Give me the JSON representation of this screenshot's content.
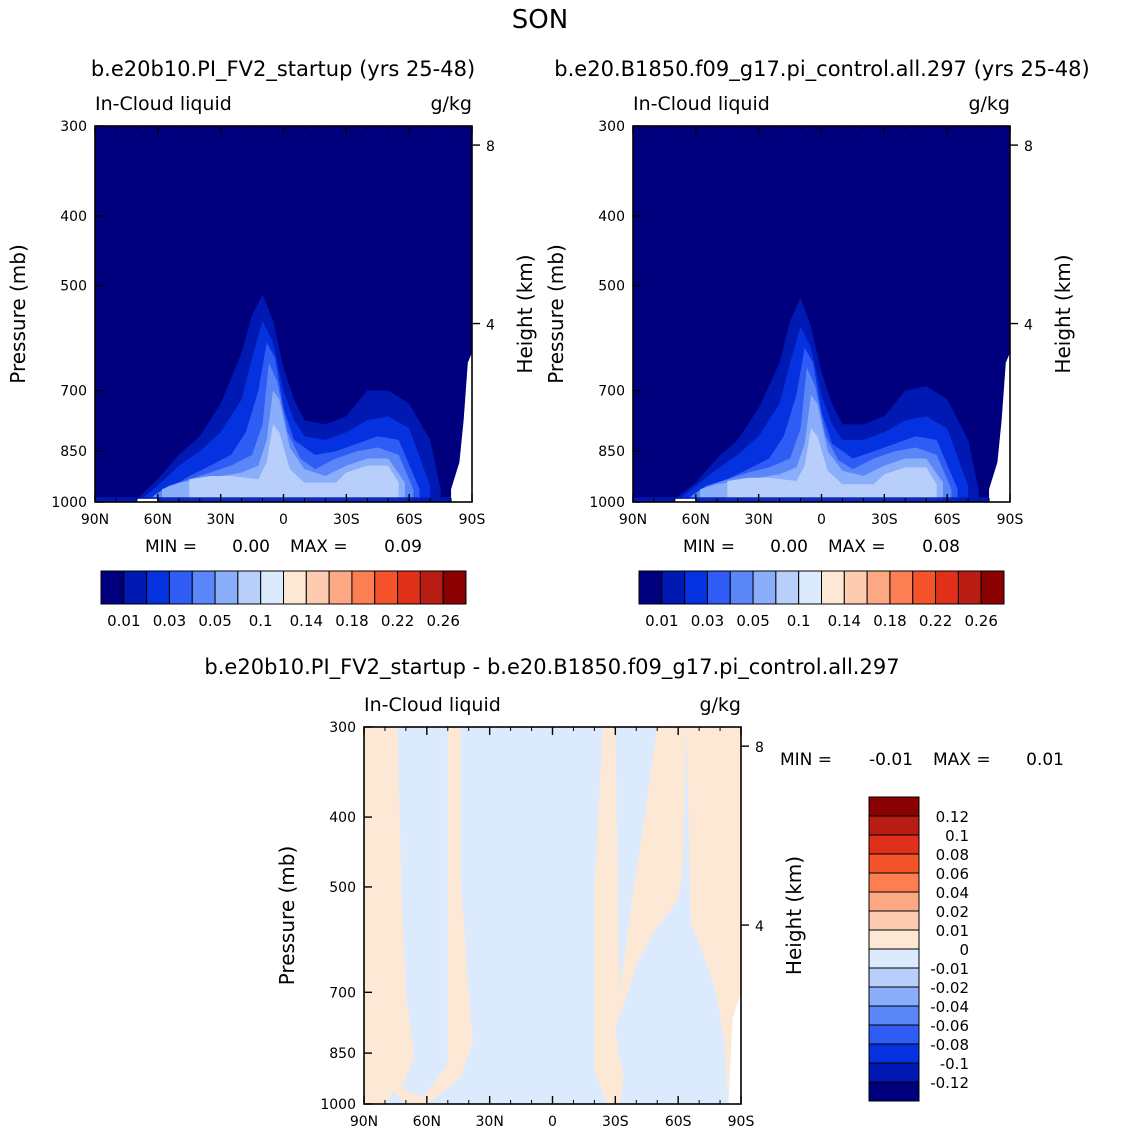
{
  "page": {
    "title": "SON",
    "panel1_header": "b.e20b10.PI_FV2_startup (yrs 25-48)",
    "panel2_header": "b.e20.B1850.f09_g17.pi_control.all.297 (yrs 25-48)",
    "diff_header": "b.e20b10.PI_FV2_startup - b.e20.B1850.f09_g17.pi_control.all.297"
  },
  "chart_data": [
    {
      "type": "heatmap",
      "variable": "In-Cloud liquid",
      "units": "g/kg",
      "ylabel": "Pressure (mb)",
      "y2label": "Height (km)",
      "x_ticks": [
        "90N",
        "60N",
        "30N",
        "0",
        "30S",
        "60S",
        "90S"
      ],
      "x_range": [
        90,
        -90
      ],
      "y_ticks": [
        300,
        400,
        500,
        700,
        850,
        1000
      ],
      "y_range": [
        300,
        1000
      ],
      "y2_ticks": [
        8,
        4
      ],
      "stats": {
        "min_label": "MIN =",
        "min_value": "0.00",
        "max_label": "MAX =",
        "max_value": "0.09"
      },
      "colorbar_labels": [
        "0.01",
        "0.03",
        "0.05",
        "0.1",
        "0.14",
        "0.18",
        "0.22",
        "0.26"
      ],
      "colors": [
        "#00007f",
        "#0019b2",
        "#0532e0",
        "#2f5cf5",
        "#5a86f8",
        "#8aaefa",
        "#b9cffb",
        "#dceafd",
        "#fde8d6",
        "#fdcbb0",
        "#fca883",
        "#fb7f52",
        "#f5542a",
        "#e0301a",
        "#b81c12",
        "#8b0000"
      ],
      "levels": [
        {
          "level": 0.005,
          "color_index": 1,
          "lat": [
            70,
            60,
            50,
            40,
            30,
            20,
            15,
            10,
            5,
            0,
            -5,
            -10,
            -20,
            -30,
            -40,
            -50,
            -60,
            -70,
            -75
          ],
          "top": [
            990,
            930,
            860,
            810,
            730,
            620,
            550,
            515,
            560,
            650,
            720,
            770,
            780,
            760,
            700,
            700,
            730,
            820,
            960
          ]
        },
        {
          "level": 0.01,
          "color_index": 2,
          "lat": [
            68,
            60,
            50,
            40,
            30,
            20,
            15,
            10,
            5,
            0,
            -5,
            -10,
            -20,
            -30,
            -40,
            -50,
            -60,
            -70
          ],
          "top": [
            990,
            950,
            890,
            850,
            800,
            720,
            630,
            560,
            600,
            700,
            770,
            810,
            820,
            800,
            770,
            760,
            790,
            950
          ]
        },
        {
          "level": 0.02,
          "color_index": 3,
          "lat": [
            65,
            55,
            45,
            35,
            25,
            18,
            12,
            8,
            4,
            0,
            -5,
            -15,
            -25,
            -35,
            -45,
            -55,
            -65
          ],
          "top": [
            990,
            960,
            920,
            890,
            860,
            800,
            700,
            600,
            630,
            740,
            820,
            860,
            850,
            830,
            810,
            820,
            960
          ]
        },
        {
          "level": 0.03,
          "color_index": 4,
          "lat": [
            62,
            55,
            45,
            35,
            25,
            15,
            10,
            7,
            3,
            -2,
            -8,
            -15,
            -25,
            -35,
            -45,
            -55,
            -62
          ],
          "top": [
            980,
            950,
            930,
            910,
            890,
            860,
            780,
            640,
            680,
            800,
            870,
            900,
            870,
            850,
            840,
            860,
            960
          ]
        },
        {
          "level": 0.05,
          "color_index": 5,
          "lat": [
            58,
            50,
            40,
            30,
            20,
            12,
            8,
            5,
            2,
            -3,
            -10,
            -20,
            -30,
            -40,
            -50,
            -58
          ],
          "top": [
            960,
            940,
            930,
            920,
            910,
            890,
            820,
            700,
            720,
            840,
            900,
            920,
            890,
            870,
            870,
            940
          ]
        },
        {
          "level": 0.07,
          "color_index": 6,
          "lat": [
            45,
            35,
            25,
            12,
            8,
            5,
            2,
            -3,
            -10,
            -25,
            -30,
            -40,
            -50,
            -55
          ],
          "top": [
            930,
            920,
            920,
            930,
            880,
            780,
            800,
            900,
            940,
            940,
            910,
            890,
            890,
            940
          ]
        }
      ]
    },
    {
      "type": "heatmap",
      "variable": "In-Cloud liquid",
      "units": "g/kg",
      "ylabel": "Pressure (mb)",
      "y2label": "Height (km)",
      "x_ticks": [
        "90N",
        "60N",
        "30N",
        "0",
        "30S",
        "60S",
        "90S"
      ],
      "x_range": [
        90,
        -90
      ],
      "y_ticks": [
        300,
        400,
        500,
        700,
        850,
        1000
      ],
      "y_range": [
        300,
        1000
      ],
      "y2_ticks": [
        8,
        4
      ],
      "stats": {
        "min_label": "MIN =",
        "min_value": "0.00",
        "max_label": "MAX =",
        "max_value": "0.08"
      },
      "colorbar_labels": [
        "0.01",
        "0.03",
        "0.05",
        "0.1",
        "0.14",
        "0.18",
        "0.22",
        "0.26"
      ],
      "levels": [
        {
          "level": 0.005,
          "color_index": 1,
          "lat": [
            70,
            60,
            50,
            40,
            30,
            20,
            15,
            10,
            5,
            0,
            -5,
            -10,
            -20,
            -30,
            -40,
            -50,
            -60,
            -70,
            -75
          ],
          "top": [
            990,
            940,
            870,
            820,
            740,
            640,
            560,
            520,
            570,
            660,
            730,
            780,
            780,
            760,
            700,
            690,
            720,
            820,
            960
          ]
        },
        {
          "level": 0.01,
          "color_index": 2,
          "lat": [
            68,
            60,
            50,
            40,
            30,
            20,
            15,
            10,
            5,
            0,
            -5,
            -10,
            -20,
            -30,
            -40,
            -50,
            -60,
            -70
          ],
          "top": [
            990,
            950,
            900,
            860,
            810,
            730,
            640,
            570,
            610,
            710,
            780,
            820,
            820,
            800,
            770,
            760,
            790,
            950
          ]
        },
        {
          "level": 0.02,
          "color_index": 3,
          "lat": [
            65,
            55,
            45,
            35,
            25,
            18,
            12,
            8,
            4,
            0,
            -5,
            -15,
            -25,
            -35,
            -45,
            -55,
            -65
          ],
          "top": [
            990,
            960,
            930,
            900,
            870,
            810,
            710,
            610,
            640,
            750,
            830,
            870,
            850,
            830,
            810,
            820,
            960
          ]
        },
        {
          "level": 0.03,
          "color_index": 4,
          "lat": [
            62,
            55,
            45,
            35,
            25,
            15,
            10,
            7,
            3,
            -2,
            -8,
            -15,
            -25,
            -35,
            -45,
            -55,
            -62
          ],
          "top": [
            980,
            950,
            930,
            910,
            895,
            870,
            790,
            650,
            690,
            810,
            875,
            900,
            870,
            850,
            840,
            860,
            960
          ]
        },
        {
          "level": 0.05,
          "color_index": 5,
          "lat": [
            58,
            50,
            40,
            30,
            20,
            12,
            8,
            5,
            2,
            -3,
            -10,
            -20,
            -30,
            -40,
            -50,
            -58
          ],
          "top": [
            960,
            945,
            935,
            925,
            915,
            895,
            830,
            710,
            730,
            850,
            905,
            920,
            890,
            870,
            870,
            940
          ]
        },
        {
          "level": 0.07,
          "color_index": 6,
          "lat": [
            45,
            35,
            25,
            12,
            8,
            5,
            2,
            -3,
            -10,
            -25,
            -30,
            -40,
            -50,
            -55
          ],
          "top": [
            935,
            925,
            925,
            935,
            890,
            790,
            810,
            905,
            945,
            945,
            915,
            895,
            895,
            945
          ]
        }
      ]
    },
    {
      "type": "heatmap",
      "variable": "In-Cloud liquid",
      "units": "g/kg",
      "ylabel": "Pressure (mb)",
      "y2label": "Height (km)",
      "x_ticks": [
        "90N",
        "60N",
        "30N",
        "0",
        "30S",
        "60S",
        "90S"
      ],
      "x_range": [
        90,
        -90
      ],
      "y_ticks": [
        300,
        400,
        500,
        700,
        850,
        1000
      ],
      "y_range": [
        300,
        1000
      ],
      "y2_ticks": [
        8,
        4
      ],
      "stats": {
        "min_label": "MIN =",
        "min_value": "-0.01",
        "max_label": "MAX =",
        "max_value": "0.01"
      },
      "colorbar_labels": [
        "0.12",
        "0.1",
        "0.08",
        "0.06",
        "0.04",
        "0.02",
        "0.01",
        "0",
        "-0.01",
        "-0.02",
        "-0.04",
        "-0.06",
        "-0.08",
        "-0.1",
        "-0.12"
      ],
      "colors_top_to_bottom": [
        "#8b0000",
        "#b81c12",
        "#e0301a",
        "#f5542a",
        "#fb7f52",
        "#fca883",
        "#fdcbb0",
        "#fde8d6",
        "#dceafd",
        "#b9cffb",
        "#8aaefa",
        "#5a86f8",
        "#2f5cf5",
        "#0532e0",
        "#0019b2",
        "#00007f"
      ],
      "regions": [
        {
          "sign": "positive",
          "lat": [
            90,
            86,
            86,
            84,
            80,
            86,
            90
          ],
          "pres": [
            300,
            300,
            500,
            700,
            760,
            1000,
            1000
          ]
        },
        {
          "sign": "positive",
          "lat": [
            50,
            44,
            44,
            40,
            38,
            44,
            60,
            70,
            76,
            80,
            90,
            90,
            74,
            72,
            70,
            66,
            72,
            62,
            50
          ],
          "pres": [
            300,
            300,
            480,
            700,
            820,
            920,
            1000,
            1000,
            960,
            1000,
            1000,
            300,
            300,
            520,
            700,
            860,
            950,
            980,
            880
          ]
        },
        {
          "sign": "positive",
          "lat": [
            -30,
            -24,
            -20,
            -20,
            -26,
            -32,
            -34,
            -32,
            -30,
            -36,
            -40,
            -48,
            -60,
            -62,
            -64,
            -60,
            -50,
            -44,
            -38,
            -32
          ],
          "pres": [
            300,
            300,
            500,
            900,
            1000,
            1000,
            920,
            860,
            780,
            700,
            640,
            580,
            520,
            480,
            300,
            300,
            300,
            400,
            520,
            700
          ]
        },
        {
          "sign": "positive",
          "lat": [
            -70,
            -64,
            -66,
            -72,
            -78,
            -82,
            -84,
            -90,
            -90
          ],
          "pres": [
            300,
            300,
            560,
            620,
            700,
            820,
            1000,
            1000,
            300
          ]
        }
      ]
    }
  ]
}
